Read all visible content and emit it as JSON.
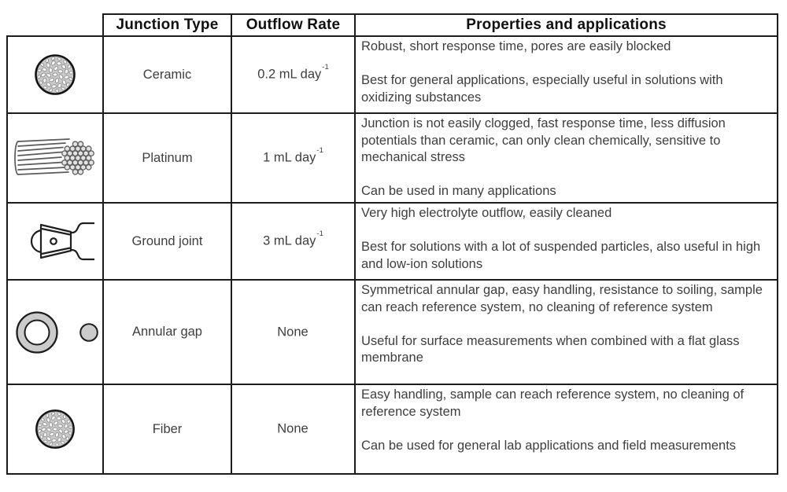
{
  "table": {
    "headers": {
      "corner": "",
      "junction_type": "Junction Type",
      "outflow_rate": "Outflow Rate",
      "properties": "Properties and applications"
    },
    "rows": [
      {
        "icon": "ceramic-junction-icon",
        "junction_type": "Ceramic",
        "outflow_value": "0.2 mL day",
        "outflow_sup": "-1",
        "properties_para1": "Robust, short response time, pores are easily blocked",
        "properties_para2": "Best for general applications, especially useful in solutions with oxidizing substances"
      },
      {
        "icon": "platinum-junction-icon",
        "junction_type": "Platinum",
        "outflow_value": "1 mL day",
        "outflow_sup": "-1",
        "properties_para1": "Junction is not easily clogged, fast response time, less diffusion potentials than ceramic, can only clean chemically, sensitive to mechanical stress",
        "properties_para2": "Can be used in many applications"
      },
      {
        "icon": "ground-joint-junction-icon",
        "junction_type": "Ground joint",
        "outflow_value": "3 mL day",
        "outflow_sup": "-1",
        "properties_para1": "Very high electrolyte outflow, easily cleaned",
        "properties_para2": "Best for solutions with a lot of suspended particles, also useful in high and low-ion solutions"
      },
      {
        "icon": "annular-gap-junction-icon",
        "junction_type": "Annular gap",
        "outflow_value": "None",
        "outflow_sup": "",
        "properties_para1": "Symmetrical annular gap, easy handling, resistance to soiling, sample can reach reference system, no cleaning of reference system",
        "properties_para2": "Useful for surface measurements when combined with a flat glass membrane"
      },
      {
        "icon": "fiber-junction-icon",
        "junction_type": "Fiber",
        "outflow_value": "None",
        "outflow_sup": "",
        "properties_para1": "Easy handling, sample can reach reference system, no cleaning of reference system",
        "properties_para2": "Can be used for general lab applications and field measurements"
      }
    ]
  },
  "colors": {
    "border": "#1c1c1c",
    "body_text": "#3e3e3e",
    "header_text": "#101010",
    "icon_fill": "#c9c9c9"
  }
}
